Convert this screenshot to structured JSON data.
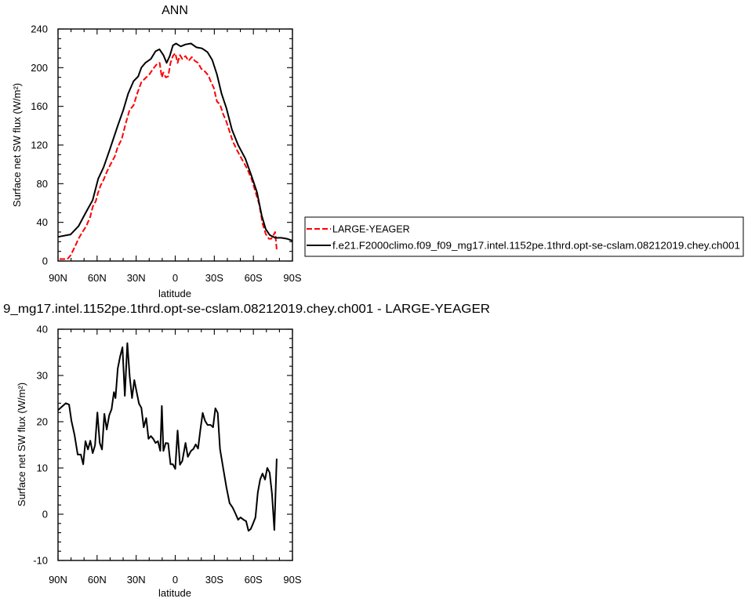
{
  "chart_data": [
    {
      "type": "line",
      "title": "ANN",
      "xlabel": "latitude",
      "ylabel": "Surface net SW flux (W/m²)",
      "xlim": [
        90,
        -90
      ],
      "ylim": [
        0,
        240
      ],
      "x_ticks": [
        90,
        60,
        30,
        0,
        -30,
        -60,
        -90
      ],
      "x_tick_labels": [
        "90N",
        "60N",
        "30N",
        "0",
        "30S",
        "60S",
        "90S"
      ],
      "y_ticks": [
        0,
        40,
        80,
        120,
        160,
        200,
        240
      ],
      "grid": false,
      "legend": "right",
      "series": [
        {
          "name": "LARGE-YEAGER",
          "color": "#ff0000",
          "style": "dashed",
          "x": [
            88.8,
            82.8,
            80.3,
            77.3,
            74.3,
            71.3,
            68.3,
            65.2,
            63.4,
            61,
            59.2,
            57.4,
            55,
            52.6,
            50.1,
            46.5,
            44.1,
            41.1,
            38.1,
            35.1,
            32,
            29,
            26,
            23,
            19.9,
            16.9,
            13.9,
            12,
            10.3,
            9.1,
            7.3,
            5.4,
            3.6,
            1.8,
            0,
            -1.8,
            -3.6,
            -5.4,
            -7.9,
            -10.3,
            -12.7,
            -15.1,
            -17.5,
            -19.9,
            -22.9,
            -25.4,
            -27.2,
            -29.6,
            -32,
            -34.4,
            -36.8,
            -39.3,
            -41.7,
            -44.1,
            -47.7,
            -51.3,
            -55,
            -58.6,
            -62.2,
            -64.6,
            -67,
            -69.5,
            -71.9,
            -73.7,
            -75.5,
            -76.7,
            -77.9
          ],
          "y": [
            2,
            2,
            6,
            14,
            23,
            30,
            36,
            46,
            56,
            62,
            71,
            78,
            84,
            92,
            99,
            108,
            118,
            126,
            142,
            156,
            161,
            174,
            185,
            189,
            193,
            199,
            204,
            205,
            190,
            195,
            190,
            191,
            205,
            212,
            215,
            205,
            213,
            209,
            212,
            207,
            211,
            207,
            205,
            199,
            196,
            192,
            186,
            179,
            165,
            162,
            152,
            144,
            134,
            124,
            114,
            105,
            96,
            85,
            69,
            58,
            39,
            28,
            23,
            23,
            27,
            30,
            12
          ]
        },
        {
          "name": "f.e21.F2000climo.f09_f09_mg17.intel.1152pe.1thrd.opt-se-cslam.08212019.chey.ch001",
          "color": "#000000",
          "style": "solid",
          "x": [
            90,
            80.3,
            74.3,
            68.3,
            63.4,
            59.2,
            55,
            50.1,
            44.1,
            39.9,
            36.2,
            32,
            28.4,
            26,
            23,
            18.7,
            15.1,
            12.1,
            9.1,
            6.6,
            4.2,
            1.8,
            -0.6,
            -4.2,
            -7.9,
            -12.1,
            -16.3,
            -20.5,
            -24.8,
            -28.4,
            -32,
            -35.6,
            -39.3,
            -43.5,
            -48.3,
            -53.8,
            -58.6,
            -62.8,
            -66.4,
            -69.5,
            -72.5,
            -76.7,
            -81.5,
            -85.8,
            -90
          ],
          "y": [
            25,
            27.5,
            36,
            51,
            63,
            85,
            97,
            116,
            140,
            156,
            173,
            186,
            191,
            200,
            205,
            209,
            217,
            219,
            213,
            205,
            212,
            223,
            225,
            222,
            224,
            225,
            221,
            220,
            216,
            208,
            193,
            173,
            158,
            136,
            120,
            106,
            88,
            71,
            47,
            33,
            27,
            24,
            24,
            23,
            21
          ]
        }
      ]
    },
    {
      "type": "line",
      "title": "9_mg17.intel.1152pe.1thrd.opt-se-cslam.08212019.chey.ch001 - LARGE-YEAGER",
      "xlabel": "latitude",
      "ylabel": "Surface net SW flux (W/m²)",
      "xlim": [
        90,
        -90
      ],
      "ylim": [
        -10,
        40
      ],
      "x_ticks": [
        90,
        60,
        30,
        0,
        -30,
        -60,
        -90
      ],
      "x_tick_labels": [
        "90N",
        "60N",
        "30N",
        "0",
        "30S",
        "60S",
        "90S"
      ],
      "y_ticks": [
        -10,
        0,
        10,
        20,
        30,
        40
      ],
      "grid": false,
      "series": [
        {
          "color": "#000000",
          "style": "solid",
          "x": [
            90,
            86.4,
            84,
            81.5,
            79.7,
            77.3,
            74.9,
            72.5,
            70.7,
            68.9,
            67,
            65.2,
            63.4,
            61.6,
            59.8,
            58,
            56.2,
            54.4,
            52.6,
            50.7,
            48.9,
            47.1,
            45.9,
            44.1,
            42.3,
            40.5,
            38.7,
            36.8,
            35,
            33.2,
            31.4,
            29.6,
            27.8,
            26,
            24.2,
            22.3,
            20.5,
            18.7,
            16.9,
            15.1,
            13.3,
            11.5,
            10.3,
            9.1,
            7.3,
            5.4,
            3.6,
            1.8,
            0,
            -1.8,
            -3.6,
            -5.4,
            -7.9,
            -9.7,
            -12.1,
            -13.9,
            -15.7,
            -17.5,
            -19.3,
            -21.1,
            -22.9,
            -24.8,
            -27.2,
            -29,
            -30.8,
            -32.6,
            -34.4,
            -36.8,
            -39.3,
            -41.7,
            -44.1,
            -46.5,
            -48.3,
            -50.1,
            -52.5,
            -54.4,
            -56.2,
            -58,
            -59.8,
            -61.6,
            -63.4,
            -65.2,
            -67,
            -68.9,
            -70.7,
            -72.5,
            -74.3,
            -76.1,
            -77.9
          ],
          "y": [
            22.5,
            23.4,
            24,
            23.7,
            20.2,
            17.1,
            12.9,
            12.9,
            10.8,
            15.8,
            14,
            15.9,
            13.2,
            14.9,
            22,
            15.4,
            14,
            21.7,
            18.3,
            21.4,
            22.7,
            26.4,
            25.1,
            31.5,
            34.1,
            36.1,
            25.6,
            37,
            29.8,
            25.1,
            29,
            26.4,
            23.9,
            23,
            18.8,
            20.8,
            16.3,
            16.9,
            16.3,
            15.4,
            15.8,
            13.7,
            23.4,
            13.7,
            15.4,
            15.3,
            10.8,
            10.8,
            9.8,
            18.1,
            10.7,
            11.5,
            15.4,
            12.4,
            13.7,
            14.1,
            15.1,
            14.2,
            18.3,
            21.9,
            20.2,
            19.3,
            19.3,
            18.8,
            22.9,
            21.9,
            14.1,
            10,
            5.8,
            2.4,
            1.4,
            0,
            -1.2,
            -0.7,
            -1.2,
            -1.5,
            -3.6,
            -3.2,
            -2,
            -0.7,
            4.7,
            7.5,
            8.8,
            7.5,
            10,
            9,
            4.4,
            -3.4,
            12
          ]
        }
      ]
    }
  ]
}
